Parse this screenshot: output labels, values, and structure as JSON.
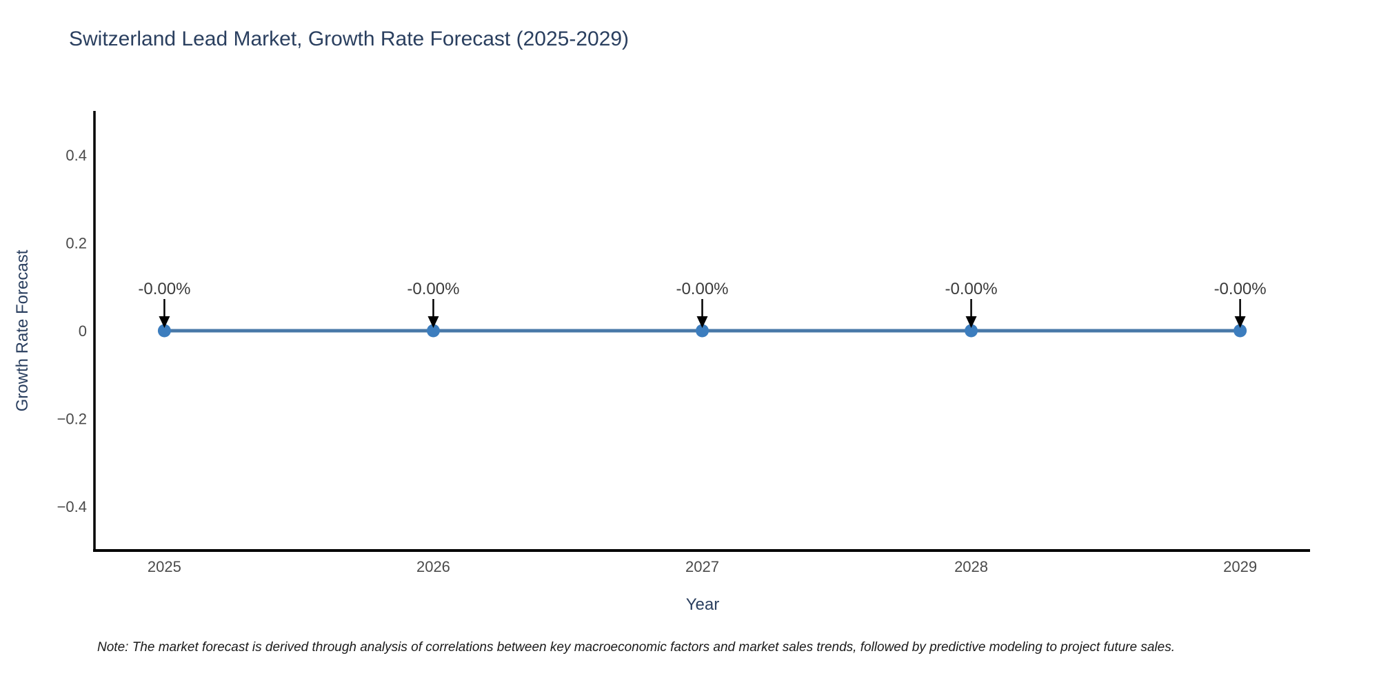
{
  "figure": {
    "note": "Note: The market forecast is derived through analysis of correlations between key macroeconomic factors and market sales trends, followed by predictive modeling to project future sales."
  },
  "chart_data": {
    "type": "line",
    "title": "Switzerland Lead Market, Growth Rate Forecast (2025-2029)",
    "xlabel": "Year",
    "ylabel": "Growth Rate Forecast",
    "x": [
      2025,
      2026,
      2027,
      2028,
      2029
    ],
    "series": [
      {
        "name": "Growth Rate Forecast",
        "values": [
          0,
          0,
          0,
          0,
          0
        ]
      }
    ],
    "point_labels": [
      "-0.00%",
      "-0.00%",
      "-0.00%",
      "-0.00%",
      "-0.00%"
    ],
    "x_tick_labels": [
      "2025",
      "2026",
      "2027",
      "2028",
      "2029"
    ],
    "y_tick_values": [
      0.4,
      0.2,
      0,
      -0.2,
      -0.4
    ],
    "y_tick_labels": [
      "0.4",
      "0.2",
      "0",
      "−0.2",
      "−0.4"
    ],
    "xlim": [
      2024.74,
      2029.26
    ],
    "ylim": [
      -0.5,
      0.5
    ],
    "grid": false,
    "legend": "none",
    "annotation_arrows": true,
    "colors": {
      "line": "#4878a8",
      "marker": "#3c7dbe",
      "axis": "#000000",
      "tick_text": "#4a4a4a",
      "label_text": "#2a3f5f",
      "annotation_text": "#3b3b3b",
      "arrow": "#000000"
    }
  }
}
